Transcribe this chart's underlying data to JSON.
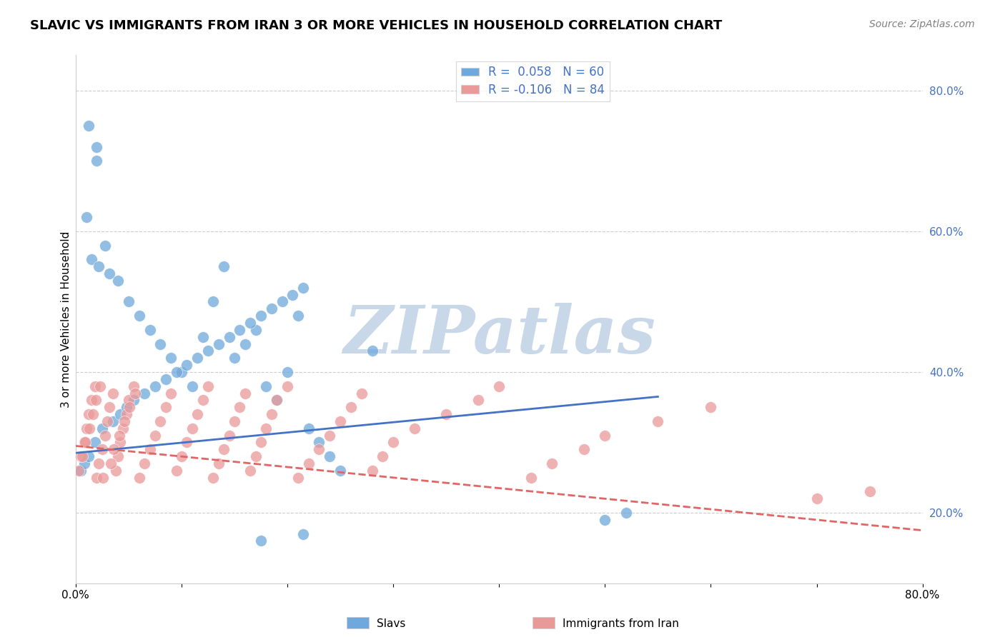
{
  "title": "SLAVIC VS IMMIGRANTS FROM IRAN 3 OR MORE VEHICLES IN HOUSEHOLD CORRELATION CHART",
  "source": "Source: ZipAtlas.com",
  "ylabel": "3 or more Vehicles in Household",
  "xlim": [
    0.0,
    0.8
  ],
  "ylim": [
    0.1,
    0.85
  ],
  "yticks_right": [
    0.2,
    0.4,
    0.6,
    0.8
  ],
  "ytick_labels_right": [
    "20.0%",
    "40.0%",
    "60.0%",
    "80.0%"
  ],
  "color_slavs": "#6fa8dc",
  "color_iran": "#ea9999",
  "color_line_slavs": "#4472c4",
  "color_line_iran": "#e06666",
  "watermark": "ZIPatlas",
  "watermark_color": "#c8d8e8",
  "slavs_x": [
    0.02,
    0.01,
    0.028,
    0.015,
    0.022,
    0.032,
    0.04,
    0.05,
    0.06,
    0.07,
    0.08,
    0.09,
    0.1,
    0.11,
    0.12,
    0.13,
    0.14,
    0.15,
    0.16,
    0.17,
    0.18,
    0.19,
    0.2,
    0.21,
    0.22,
    0.23,
    0.24,
    0.25,
    0.28,
    0.005,
    0.008,
    0.012,
    0.018,
    0.025,
    0.035,
    0.042,
    0.048,
    0.055,
    0.065,
    0.075,
    0.085,
    0.095,
    0.105,
    0.115,
    0.125,
    0.135,
    0.145,
    0.155,
    0.165,
    0.175,
    0.185,
    0.195,
    0.205,
    0.215,
    0.5,
    0.52,
    0.175,
    0.215,
    0.012,
    0.02
  ],
  "slavs_y": [
    0.7,
    0.62,
    0.58,
    0.56,
    0.55,
    0.54,
    0.53,
    0.5,
    0.48,
    0.46,
    0.44,
    0.42,
    0.4,
    0.38,
    0.45,
    0.5,
    0.55,
    0.42,
    0.44,
    0.46,
    0.38,
    0.36,
    0.4,
    0.48,
    0.32,
    0.3,
    0.28,
    0.26,
    0.43,
    0.26,
    0.27,
    0.28,
    0.3,
    0.32,
    0.33,
    0.34,
    0.35,
    0.36,
    0.37,
    0.38,
    0.39,
    0.4,
    0.41,
    0.42,
    0.43,
    0.44,
    0.45,
    0.46,
    0.47,
    0.48,
    0.49,
    0.5,
    0.51,
    0.52,
    0.19,
    0.2,
    0.16,
    0.17,
    0.75,
    0.72
  ],
  "iran_x": [
    0.005,
    0.008,
    0.01,
    0.012,
    0.015,
    0.018,
    0.02,
    0.022,
    0.025,
    0.028,
    0.03,
    0.032,
    0.035,
    0.038,
    0.04,
    0.042,
    0.045,
    0.048,
    0.05,
    0.055,
    0.06,
    0.065,
    0.07,
    0.075,
    0.08,
    0.085,
    0.09,
    0.095,
    0.1,
    0.105,
    0.11,
    0.115,
    0.12,
    0.125,
    0.13,
    0.135,
    0.14,
    0.145,
    0.15,
    0.155,
    0.16,
    0.165,
    0.17,
    0.175,
    0.18,
    0.185,
    0.19,
    0.2,
    0.21,
    0.22,
    0.23,
    0.24,
    0.25,
    0.26,
    0.27,
    0.28,
    0.29,
    0.3,
    0.32,
    0.35,
    0.38,
    0.4,
    0.43,
    0.45,
    0.48,
    0.5,
    0.55,
    0.6,
    0.7,
    0.75,
    0.003,
    0.006,
    0.009,
    0.013,
    0.016,
    0.019,
    0.023,
    0.026,
    0.033,
    0.036,
    0.041,
    0.046,
    0.051,
    0.056
  ],
  "iran_y": [
    0.28,
    0.3,
    0.32,
    0.34,
    0.36,
    0.38,
    0.25,
    0.27,
    0.29,
    0.31,
    0.33,
    0.35,
    0.37,
    0.26,
    0.28,
    0.3,
    0.32,
    0.34,
    0.36,
    0.38,
    0.25,
    0.27,
    0.29,
    0.31,
    0.33,
    0.35,
    0.37,
    0.26,
    0.28,
    0.3,
    0.32,
    0.34,
    0.36,
    0.38,
    0.25,
    0.27,
    0.29,
    0.31,
    0.33,
    0.35,
    0.37,
    0.26,
    0.28,
    0.3,
    0.32,
    0.34,
    0.36,
    0.38,
    0.25,
    0.27,
    0.29,
    0.31,
    0.33,
    0.35,
    0.37,
    0.26,
    0.28,
    0.3,
    0.32,
    0.34,
    0.36,
    0.38,
    0.25,
    0.27,
    0.29,
    0.31,
    0.33,
    0.35,
    0.22,
    0.23,
    0.26,
    0.28,
    0.3,
    0.32,
    0.34,
    0.36,
    0.38,
    0.25,
    0.27,
    0.29,
    0.31,
    0.33,
    0.35,
    0.37
  ],
  "slavs_trend_x": [
    0.0,
    0.55
  ],
  "slavs_trend_y": [
    0.285,
    0.365
  ],
  "iran_trend_x": [
    0.0,
    0.8
  ],
  "iran_trend_y": [
    0.295,
    0.175
  ],
  "legend_label_slavs": "Slavs",
  "legend_label_iran": "Immigrants from Iran",
  "bg_color": "#ffffff",
  "grid_color": "#cccccc"
}
